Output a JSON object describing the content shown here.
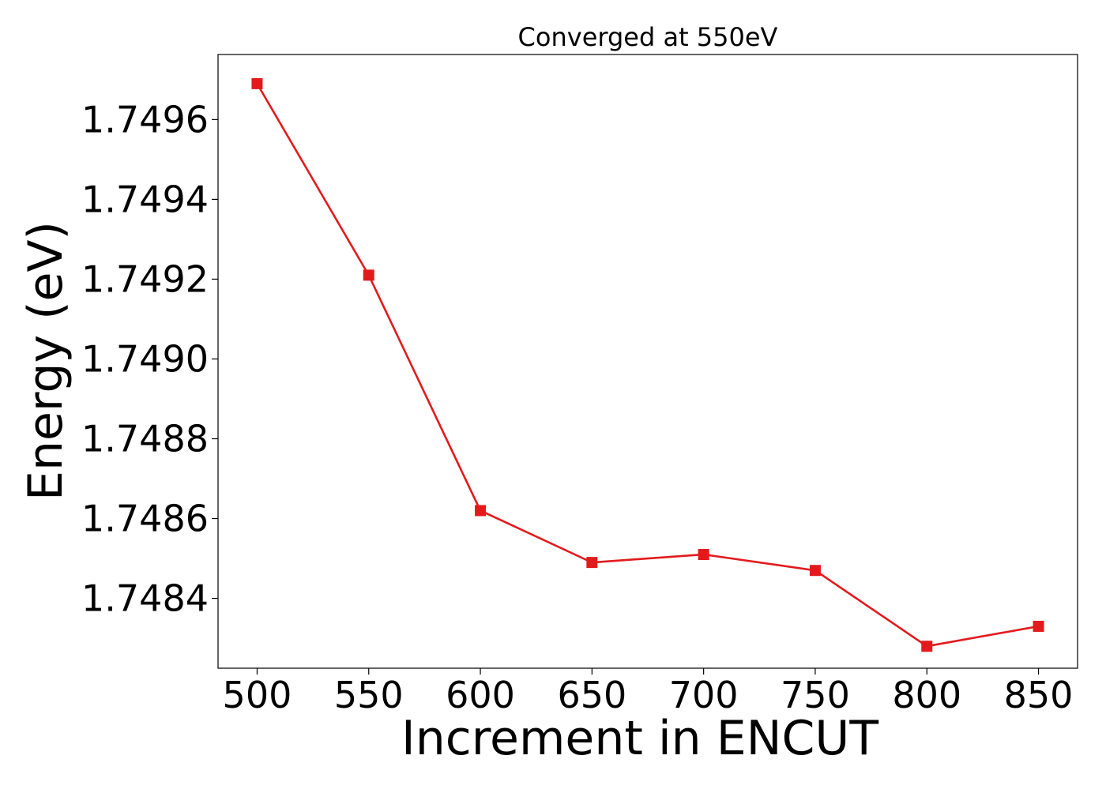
{
  "chart_data": {
    "type": "line",
    "title": "Converged at 550eV",
    "xlabel": "Increment in ENCUT",
    "ylabel": "Energy (eV)",
    "x": [
      500,
      550,
      600,
      650,
      700,
      750,
      800,
      850
    ],
    "series": [
      {
        "values": [
          1.74969,
          1.74921,
          1.74862,
          1.74849,
          1.74851,
          1.74847,
          1.74828,
          1.74833
        ],
        "color": "#e31a1c",
        "marker": "square"
      }
    ],
    "xticks": [
      "500",
      "550",
      "600",
      "650",
      "700",
      "750",
      "800",
      "850"
    ],
    "yticks": [
      "1.7484",
      "1.7486",
      "1.7488",
      "1.7490",
      "1.7492",
      "1.7494",
      "1.7496"
    ],
    "xlim": [
      482.5,
      867.5
    ],
    "ylim": [
      1.748225,
      1.749763
    ],
    "grid": false,
    "legend": "none"
  }
}
